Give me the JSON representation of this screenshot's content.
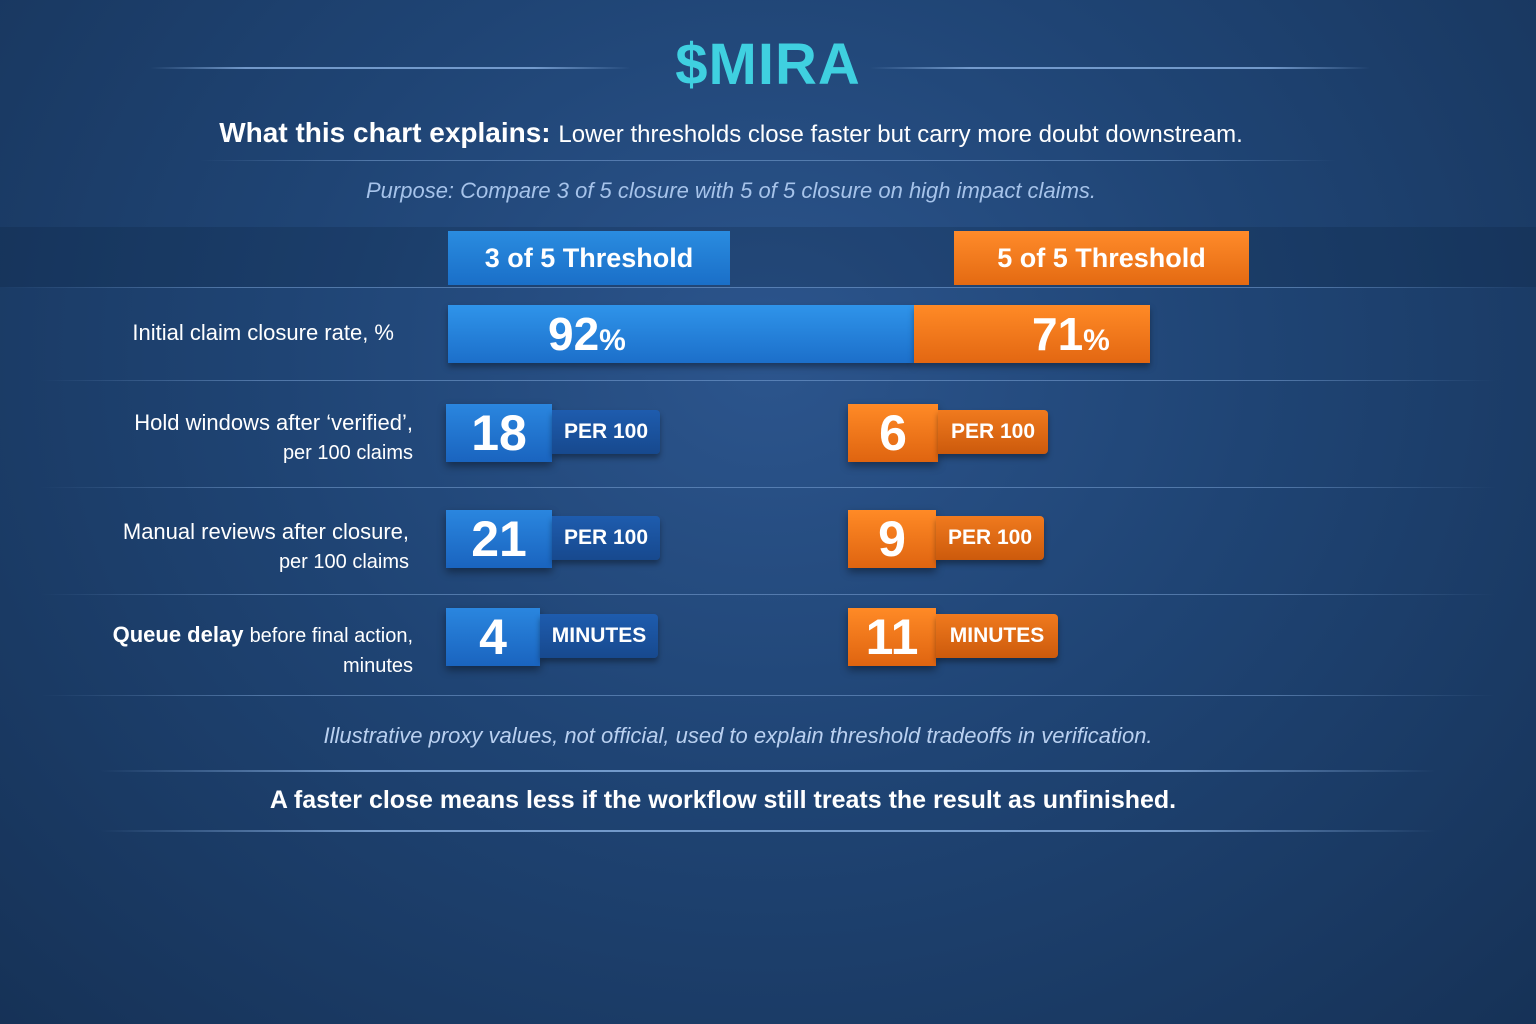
{
  "header": {
    "brand": "$MIRA",
    "subtitle_lead": "What this chart explains:",
    "subtitle_rest": "Lower thresholds close faster but carry more doubt downstream.",
    "purpose": "Purpose: Compare 3 of 5 closure with 5 of 5 closure on high impact claims."
  },
  "colors": {
    "threshold_a": "#1f78d6",
    "threshold_b": "#f07a1e",
    "brand": "#3fd0e0",
    "background": "#1f4474"
  },
  "chart_data": {
    "type": "bar",
    "series": [
      {
        "name": "3 of 5 Threshold",
        "values": [
          92,
          18,
          21,
          4
        ]
      },
      {
        "name": "5 of 5 Threshold",
        "values": [
          71,
          6,
          9,
          11
        ]
      }
    ],
    "categories": [
      "Initial claim closure rate, %",
      "Hold windows after ‘verified’, per 100 claims",
      "Manual reviews after closure, per 100 claims",
      "Queue delay before final action, minutes"
    ],
    "units": [
      "%",
      "PER 100",
      "PER 100",
      "MINUTES"
    ]
  },
  "labels": {
    "row1": {
      "main": "Initial claim closure rate, %",
      "value_a": "92",
      "value_b": "71",
      "pct": "%"
    },
    "row2": {
      "line1": "Hold windows after ‘verified’,",
      "line2": "per 100 claims",
      "value_a": "18",
      "value_b": "6",
      "unit_a": "PER 100",
      "unit_b": "PER 100"
    },
    "row3": {
      "line1": "Manual reviews after closure,",
      "line2": "per 100 claims",
      "value_a": "21",
      "value_b": "9",
      "unit_a": "PER 100",
      "unit_b": "PER 100"
    },
    "row4": {
      "bold": "Queue delay",
      "rest": "before final action,",
      "line2": "minutes",
      "value_a": "4",
      "value_b": "11",
      "unit_a": "MINUTES",
      "unit_b": "MINUTES"
    }
  },
  "footer": {
    "note": "Illustrative proxy values, not official, used to explain threshold tradeoffs in verification.",
    "takeaway": "A faster close means less if the workflow still treats the result as unfinished."
  }
}
